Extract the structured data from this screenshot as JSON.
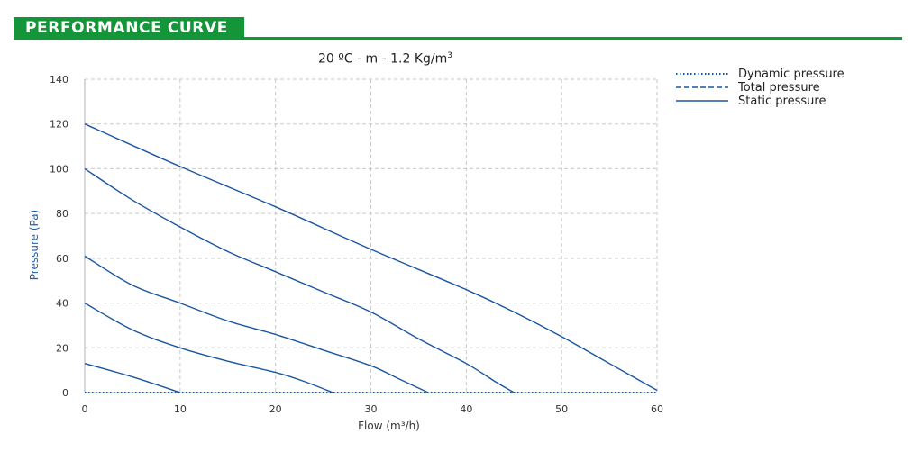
{
  "header": {
    "title": "PERFORMANCE CURVE"
  },
  "colors": {
    "brand_green": "#15953a",
    "curve_blue": "#1a55a3",
    "axis_label_blue": "#1f5fb3",
    "grid": "#c9c9c9"
  },
  "chart_data": {
    "type": "line",
    "title": "20 ºC - m - 1.2 Kg/m",
    "title_superscript": "3",
    "xlabel": "Flow (m³/h)",
    "ylabel": "Pressure (Pa)",
    "xlim": [
      0,
      60
    ],
    "ylim": [
      0,
      140
    ],
    "x_ticks": [
      "0",
      "10",
      "20",
      "30",
      "40",
      "50",
      "60"
    ],
    "y_ticks": [
      "0",
      "20",
      "40",
      "60",
      "80",
      "100",
      "120",
      "140"
    ],
    "grid": true,
    "legend_position": "top-right, outside plot",
    "legend": [
      {
        "label": "Dynamic pressure",
        "style": "dotted"
      },
      {
        "label": "Total pressure",
        "style": "dashed"
      },
      {
        "label": "Static pressure",
        "style": "solid"
      }
    ],
    "series": [
      {
        "style": "solid",
        "points": [
          [
            0,
            120
          ],
          [
            10,
            101
          ],
          [
            20,
            83
          ],
          [
            30,
            64
          ],
          [
            40,
            46
          ],
          [
            45,
            36
          ],
          [
            50,
            25
          ],
          [
            55,
            13
          ],
          [
            60,
            1
          ]
        ]
      },
      {
        "style": "solid",
        "points": [
          [
            0,
            100
          ],
          [
            5,
            86
          ],
          [
            10,
            74
          ],
          [
            15,
            63
          ],
          [
            20,
            54
          ],
          [
            25,
            45
          ],
          [
            30,
            36
          ],
          [
            35,
            24
          ],
          [
            40,
            13
          ],
          [
            43,
            5
          ],
          [
            45,
            0
          ]
        ]
      },
      {
        "style": "solid",
        "points": [
          [
            0,
            61
          ],
          [
            5,
            48
          ],
          [
            10,
            40
          ],
          [
            15,
            32
          ],
          [
            20,
            26
          ],
          [
            25,
            19
          ],
          [
            30,
            12
          ],
          [
            33,
            6
          ],
          [
            36,
            0
          ]
        ]
      },
      {
        "style": "solid",
        "points": [
          [
            0,
            40
          ],
          [
            5,
            28
          ],
          [
            10,
            20
          ],
          [
            15,
            14
          ],
          [
            20,
            9
          ],
          [
            23,
            5
          ],
          [
            26,
            0
          ]
        ]
      },
      {
        "style": "solid",
        "points": [
          [
            0,
            13
          ],
          [
            5,
            7
          ],
          [
            10,
            0
          ]
        ]
      },
      {
        "style": "dotted",
        "points": [
          [
            0,
            0
          ],
          [
            60,
            0
          ]
        ]
      }
    ]
  }
}
